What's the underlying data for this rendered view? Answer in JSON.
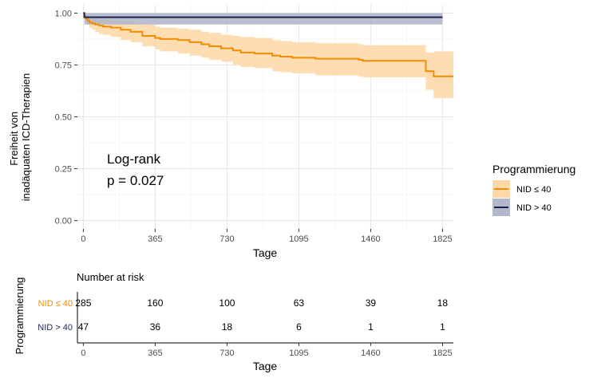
{
  "chart_data": [
    {
      "type": "line",
      "subtype": "kaplan-meier",
      "xlabel": "Tage",
      "ylabel": "Freiheit von inadäquaten ICD-Therapien",
      "ylabel_lines": [
        "Freiheit von",
        "inadäquaten ICD-Therapien"
      ],
      "xlim": [
        -30,
        1880
      ],
      "ylim": [
        -0.04,
        1.04
      ],
      "x_ticks": [
        0,
        365,
        730,
        1095,
        1460,
        1825
      ],
      "x_tick_labels": [
        "0",
        "365",
        "730",
        "1095",
        "1460",
        "1825"
      ],
      "y_ticks": [
        0,
        0.25,
        0.5,
        0.75,
        1.0
      ],
      "y_tick_labels": [
        "0.00",
        "0.25",
        "0.50",
        "0.75",
        "1.00"
      ],
      "grid": true,
      "annotation": [
        "Log-rank",
        "p = 0.027"
      ],
      "legend": {
        "title": "Programmierung",
        "position": "right",
        "entries": [
          "NID ≤ 40",
          "NID > 40"
        ]
      },
      "series": [
        {
          "name": "NID ≤ 40",
          "color": "#f28c00",
          "band_color": "#fdd9a8",
          "x": [
            0,
            5,
            12,
            20,
            30,
            45,
            60,
            80,
            100,
            140,
            190,
            240,
            300,
            365,
            390,
            420,
            480,
            540,
            600,
            640,
            700,
            760,
            800,
            870,
            960,
            1000,
            1060,
            1180,
            1400,
            1420,
            1740,
            1780,
            1880
          ],
          "y": [
            1.0,
            0.985,
            0.975,
            0.965,
            0.955,
            0.95,
            0.945,
            0.94,
            0.935,
            0.93,
            0.92,
            0.91,
            0.89,
            0.88,
            0.875,
            0.875,
            0.87,
            0.86,
            0.85,
            0.84,
            0.83,
            0.82,
            0.81,
            0.805,
            0.795,
            0.79,
            0.785,
            0.78,
            0.775,
            0.77,
            0.72,
            0.695,
            0.695
          ],
          "lower": [
            1.0,
            0.97,
            0.955,
            0.945,
            0.93,
            0.92,
            0.91,
            0.9,
            0.895,
            0.885,
            0.87,
            0.86,
            0.84,
            0.825,
            0.815,
            0.815,
            0.805,
            0.795,
            0.785,
            0.775,
            0.765,
            0.75,
            0.74,
            0.735,
            0.72,
            0.715,
            0.71,
            0.7,
            0.695,
            0.69,
            0.63,
            0.59,
            0.59
          ],
          "upper": [
            1.0,
            1.0,
            0.995,
            0.99,
            0.985,
            0.98,
            0.975,
            0.97,
            0.97,
            0.965,
            0.96,
            0.955,
            0.945,
            0.935,
            0.93,
            0.93,
            0.925,
            0.92,
            0.91,
            0.905,
            0.895,
            0.89,
            0.885,
            0.88,
            0.87,
            0.865,
            0.86,
            0.855,
            0.85,
            0.845,
            0.81,
            0.815,
            0.815
          ]
        },
        {
          "name": "NID > 40",
          "color": "#1c2651",
          "band_color": "#b2b7cc",
          "x": [
            0,
            5,
            1825
          ],
          "y": [
            1.0,
            0.98,
            0.98
          ],
          "lower": [
            1.0,
            0.945,
            0.945
          ],
          "upper": [
            1.0,
            1.0,
            1.0
          ]
        }
      ]
    },
    {
      "type": "table",
      "title": "Number at risk",
      "xlabel": "Tage",
      "row_axis_label": "Programmierung",
      "x_ticks": [
        0,
        365,
        730,
        1095,
        1460,
        1825
      ],
      "x_tick_labels": [
        "0",
        "365",
        "730",
        "1095",
        "1460",
        "1825"
      ],
      "rows": [
        {
          "label": "NID ≤ 40",
          "color": "#f28c00",
          "values": [
            285,
            160,
            100,
            63,
            39,
            18
          ]
        },
        {
          "label": "NID > 40",
          "color": "#1c2651",
          "values": [
            47,
            36,
            18,
            6,
            1,
            1
          ]
        }
      ]
    }
  ]
}
